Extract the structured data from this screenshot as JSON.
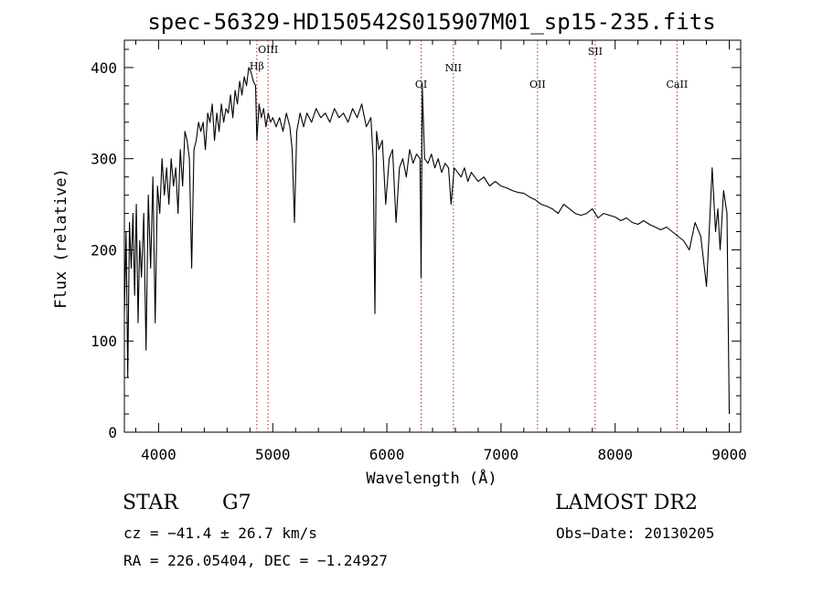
{
  "chart_data": {
    "type": "line",
    "title": "spec-56329-HD150542S015907M01_sp15-235.fits",
    "xlabel": "Wavelength (Å)",
    "ylabel": "Flux (relative)",
    "xlim": [
      3700,
      9100
    ],
    "ylim": [
      0,
      430
    ],
    "xticks": [
      4000,
      5000,
      6000,
      7000,
      8000,
      9000
    ],
    "yticks": [
      0,
      100,
      200,
      300,
      400
    ],
    "grid": false,
    "series": [
      {
        "color": "#000000",
        "x": [
          3700,
          3715,
          3730,
          3745,
          3760,
          3775,
          3790,
          3805,
          3820,
          3835,
          3850,
          3870,
          3890,
          3910,
          3930,
          3950,
          3970,
          3990,
          4010,
          4030,
          4050,
          4070,
          4090,
          4110,
          4130,
          4150,
          4170,
          4190,
          4210,
          4230,
          4250,
          4270,
          4290,
          4310,
          4330,
          4350,
          4370,
          4390,
          4410,
          4430,
          4450,
          4470,
          4490,
          4510,
          4530,
          4550,
          4570,
          4590,
          4610,
          4630,
          4650,
          4670,
          4690,
          4710,
          4730,
          4750,
          4770,
          4790,
          4810,
          4830,
          4850,
          4861,
          4880,
          4900,
          4920,
          4940,
          4960,
          4980,
          5000,
          5030,
          5060,
          5090,
          5120,
          5150,
          5170,
          5190,
          5210,
          5240,
          5270,
          5300,
          5340,
          5380,
          5420,
          5460,
          5500,
          5540,
          5580,
          5620,
          5660,
          5700,
          5740,
          5780,
          5820,
          5860,
          5880,
          5895,
          5910,
          5930,
          5960,
          5990,
          6020,
          6050,
          6080,
          6110,
          6140,
          6170,
          6200,
          6230,
          6260,
          6290,
          6300,
          6310,
          6330,
          6360,
          6390,
          6420,
          6450,
          6480,
          6510,
          6540,
          6563,
          6590,
          6620,
          6650,
          6680,
          6710,
          6740,
          6770,
          6800,
          6850,
          6900,
          6950,
          7000,
          7050,
          7100,
          7150,
          7200,
          7250,
          7300,
          7350,
          7400,
          7450,
          7500,
          7550,
          7600,
          7650,
          7700,
          7750,
          7800,
          7850,
          7900,
          7950,
          8000,
          8050,
          8100,
          8150,
          8200,
          8250,
          8300,
          8350,
          8400,
          8450,
          8500,
          8550,
          8600,
          8650,
          8700,
          8750,
          8800,
          8820,
          8850,
          8880,
          8900,
          8920,
          8950,
          8980,
          9000
        ],
        "y": [
          130,
          220,
          60,
          230,
          180,
          240,
          150,
          250,
          120,
          210,
          170,
          240,
          90,
          260,
          180,
          280,
          120,
          270,
          240,
          300,
          260,
          290,
          250,
          300,
          270,
          290,
          240,
          310,
          270,
          330,
          320,
          300,
          180,
          310,
          320,
          340,
          330,
          340,
          310,
          350,
          340,
          360,
          320,
          350,
          330,
          360,
          340,
          355,
          350,
          370,
          345,
          375,
          360,
          385,
          370,
          390,
          380,
          400,
          395,
          385,
          380,
          320,
          360,
          345,
          355,
          335,
          350,
          340,
          345,
          335,
          345,
          330,
          350,
          335,
          310,
          230,
          330,
          350,
          335,
          350,
          340,
          355,
          345,
          350,
          340,
          355,
          345,
          350,
          340,
          355,
          345,
          360,
          335,
          345,
          300,
          130,
          330,
          310,
          320,
          250,
          300,
          310,
          230,
          290,
          300,
          280,
          310,
          295,
          305,
          300,
          170,
          380,
          300,
          295,
          305,
          290,
          300,
          285,
          295,
          290,
          250,
          290,
          285,
          280,
          290,
          275,
          285,
          280,
          275,
          280,
          270,
          275,
          270,
          268,
          265,
          263,
          262,
          258,
          255,
          250,
          248,
          245,
          240,
          250,
          245,
          240,
          238,
          240,
          245,
          235,
          240,
          238,
          236,
          232,
          235,
          230,
          228,
          232,
          228,
          225,
          222,
          225,
          220,
          215,
          210,
          200,
          230,
          215,
          160,
          210,
          290,
          220,
          245,
          200,
          265,
          240,
          20
        ]
      }
    ],
    "annotations": [
      {
        "label": "Hβ",
        "x": 4861
      },
      {
        "label": "OIII",
        "x": 4959
      },
      {
        "label": "OI",
        "x": 6300
      },
      {
        "label": "NII",
        "x": 6583
      },
      {
        "label": "OII",
        "x": 7320
      },
      {
        "label": "SII",
        "x": 7825
      },
      {
        "label": "CaII",
        "x": 8542
      }
    ],
    "line_color": "#b22222"
  },
  "info": {
    "object_type": "STAR",
    "subclass": "G7",
    "survey": "LAMOST DR2",
    "redshift": "cz = −41.4 ± 26.7 km/s",
    "obs_date": "Obs−Date: 20130205",
    "coords": "RA = 226.05404, DEC =  −1.24927"
  }
}
